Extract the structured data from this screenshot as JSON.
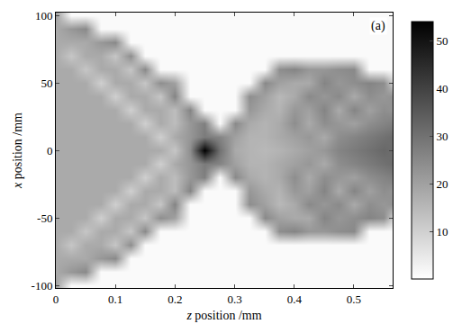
{
  "chart_data": {
    "type": "heatmap",
    "x_label": "z position /mm",
    "y_label": "x position /mm",
    "annotation": "(a)",
    "x": [
      0,
      0.025,
      0.05,
      0.075,
      0.1,
      0.125,
      0.15,
      0.175,
      0.2,
      0.225,
      0.25,
      0.275,
      0.3,
      0.325,
      0.35,
      0.375,
      0.4,
      0.425,
      0.45,
      0.475,
      0.5,
      0.525,
      0.55,
      0.575
    ],
    "y": [
      -100,
      -90,
      -80,
      -70,
      -60,
      -50,
      -40,
      -30,
      -20,
      -10,
      0,
      10,
      20,
      30,
      40,
      50,
      60,
      70,
      80,
      90,
      100
    ],
    "z": [
      [
        20,
        1,
        1,
        1,
        1,
        1,
        1,
        1,
        1,
        1,
        1,
        1,
        1,
        1,
        1,
        1,
        1,
        1,
        1,
        1,
        1,
        1,
        1,
        1
      ],
      [
        18,
        22,
        25,
        1,
        1,
        1,
        1,
        1,
        1,
        1,
        1,
        1,
        1,
        1,
        1,
        1,
        1,
        1,
        1,
        1,
        1,
        1,
        1,
        1
      ],
      [
        18,
        18,
        18,
        22,
        25,
        1,
        1,
        1,
        1,
        1,
        1,
        1,
        1,
        1,
        1,
        1,
        1,
        1,
        1,
        1,
        1,
        1,
        1,
        1
      ],
      [
        18,
        12,
        18,
        18,
        12,
        24,
        1,
        1,
        1,
        1,
        1,
        1,
        1,
        1,
        1,
        1,
        1,
        1,
        1,
        1,
        1,
        1,
        1,
        1
      ],
      [
        18,
        18,
        12,
        18,
        18,
        12,
        25,
        1,
        1,
        1,
        1,
        1,
        1,
        1,
        1,
        24,
        26,
        22,
        22,
        24,
        25,
        1,
        1,
        1
      ],
      [
        18,
        18,
        18,
        10,
        18,
        18,
        12,
        24,
        20,
        1,
        1,
        1,
        1,
        1,
        25,
        20,
        18,
        18,
        26,
        22,
        24,
        26,
        24,
        1
      ],
      [
        18,
        18,
        18,
        18,
        10,
        18,
        18,
        12,
        26,
        1,
        1,
        1,
        1,
        24,
        20,
        15,
        18,
        25,
        22,
        25,
        18,
        24,
        22,
        24
      ],
      [
        18,
        18,
        18,
        18,
        18,
        10,
        18,
        18,
        14,
        26,
        1,
        1,
        1,
        22,
        18,
        16,
        22,
        20,
        26,
        18,
        26,
        20,
        24,
        22
      ],
      [
        18,
        18,
        18,
        18,
        18,
        18,
        10,
        18,
        14,
        22,
        27,
        1,
        25,
        18,
        16,
        18,
        24,
        18,
        24,
        22,
        20,
        24,
        26,
        28
      ],
      [
        18,
        18,
        18,
        18,
        18,
        18,
        18,
        10,
        18,
        22,
        28,
        26,
        20,
        16,
        16,
        18,
        20,
        22,
        18,
        24,
        26,
        28,
        30,
        32
      ],
      [
        18,
        18,
        18,
        18,
        18,
        18,
        18,
        18,
        12,
        24,
        54,
        30,
        18,
        16,
        15,
        16,
        18,
        20,
        22,
        26,
        28,
        30,
        32,
        30
      ],
      [
        18,
        18,
        18,
        18,
        18,
        18,
        18,
        10,
        18,
        22,
        28,
        26,
        20,
        16,
        16,
        18,
        20,
        22,
        18,
        24,
        26,
        28,
        30,
        32
      ],
      [
        18,
        18,
        18,
        18,
        18,
        18,
        10,
        18,
        14,
        22,
        27,
        1,
        25,
        18,
        16,
        18,
        24,
        18,
        24,
        22,
        20,
        24,
        26,
        28
      ],
      [
        18,
        18,
        18,
        18,
        18,
        10,
        18,
        18,
        14,
        26,
        1,
        1,
        1,
        22,
        18,
        16,
        22,
        20,
        26,
        18,
        26,
        20,
        24,
        22
      ],
      [
        18,
        18,
        18,
        18,
        10,
        18,
        18,
        12,
        26,
        1,
        1,
        1,
        1,
        24,
        20,
        15,
        18,
        25,
        22,
        25,
        18,
        24,
        22,
        24
      ],
      [
        18,
        18,
        18,
        10,
        18,
        18,
        12,
        24,
        20,
        1,
        1,
        1,
        1,
        1,
        25,
        20,
        18,
        18,
        26,
        22,
        24,
        26,
        24,
        1
      ],
      [
        18,
        18,
        12,
        18,
        18,
        12,
        25,
        1,
        1,
        1,
        1,
        1,
        1,
        1,
        1,
        24,
        26,
        22,
        22,
        24,
        25,
        1,
        1,
        1
      ],
      [
        18,
        12,
        18,
        18,
        12,
        24,
        1,
        1,
        1,
        1,
        1,
        1,
        1,
        1,
        1,
        1,
        1,
        1,
        1,
        1,
        1,
        1,
        1,
        1
      ],
      [
        18,
        18,
        18,
        22,
        25,
        1,
        1,
        1,
        1,
        1,
        1,
        1,
        1,
        1,
        1,
        1,
        1,
        1,
        1,
        1,
        1,
        1,
        1,
        1
      ],
      [
        18,
        22,
        25,
        1,
        1,
        1,
        1,
        1,
        1,
        1,
        1,
        1,
        1,
        1,
        1,
        1,
        1,
        1,
        1,
        1,
        1,
        1,
        1,
        1
      ],
      [
        20,
        1,
        1,
        1,
        1,
        1,
        1,
        1,
        1,
        1,
        1,
        1,
        1,
        1,
        1,
        1,
        1,
        1,
        1,
        1,
        1,
        1,
        1,
        1
      ]
    ],
    "xlim": [
      0,
      0.565
    ],
    "xticks": [
      0,
      0.1,
      0.2,
      0.3,
      0.4,
      0.5
    ],
    "ylim": [
      -102,
      102
    ],
    "yticks": [
      -100,
      -50,
      0,
      50,
      100
    ],
    "colorbar_range": [
      0,
      54
    ],
    "colorbar_ticks": [
      10,
      20,
      30,
      40,
      50
    ]
  }
}
